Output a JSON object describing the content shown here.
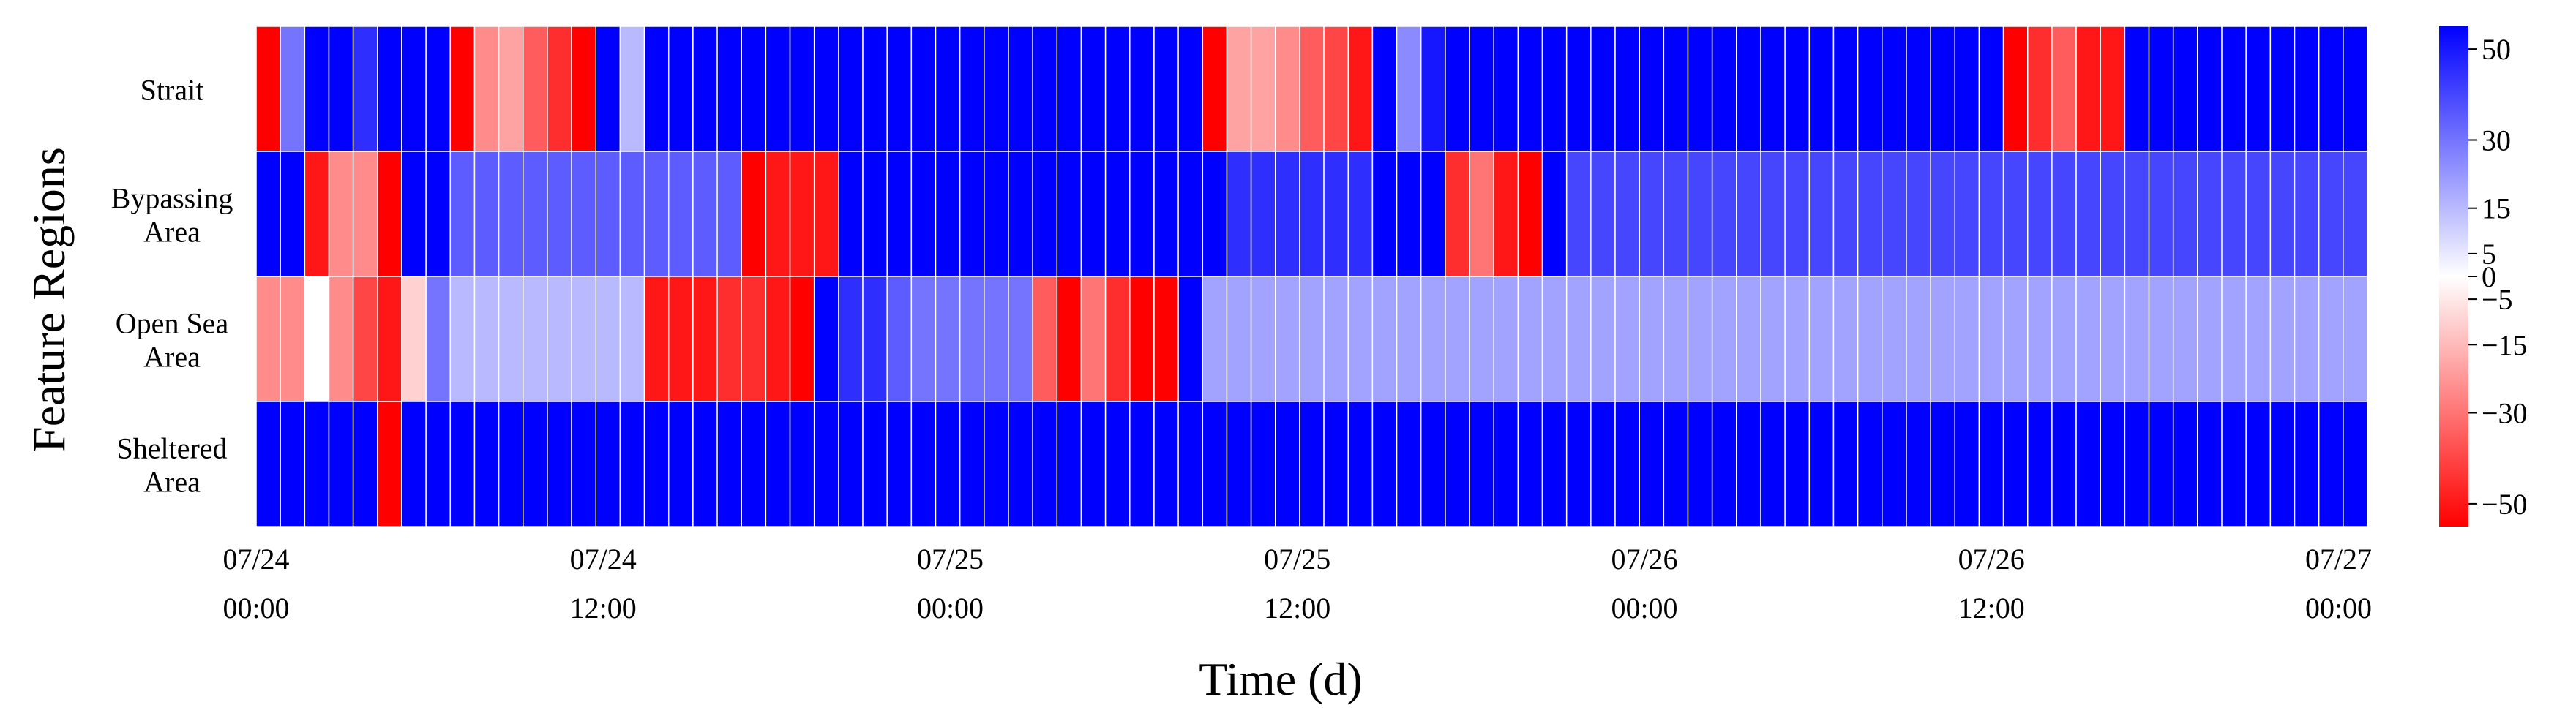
{
  "chart_data": {
    "type": "heatmap",
    "title": "",
    "xlabel": "Time (d)",
    "ylabel": "Feature Regions",
    "rows": [
      "Strait",
      "Bypassing Area",
      "Open Sea Area",
      "Sheltered Area"
    ],
    "row_label_lines": [
      [
        "Strait"
      ],
      [
        "Bypassing",
        "Area"
      ],
      [
        "Open Sea",
        "Area"
      ],
      [
        "Sheltered",
        "Area"
      ]
    ],
    "x_ticks": [
      {
        "hour": 0,
        "date": "07/24",
        "time": "00:00"
      },
      {
        "hour": 12,
        "date": "07/24",
        "time": "12:00"
      },
      {
        "hour": 24,
        "date": "07/25",
        "time": "00:00"
      },
      {
        "hour": 36,
        "date": "07/25",
        "time": "12:00"
      },
      {
        "hour": 48,
        "date": "07/26",
        "time": "00:00"
      },
      {
        "hour": 60,
        "date": "07/26",
        "time": "12:00"
      },
      {
        "hour": 72,
        "date": "07/27",
        "time": "00:00"
      }
    ],
    "time_range_hours": [
      0,
      73
    ],
    "color_scale": {
      "min": -55,
      "max": 55,
      "low_color": "#ff0000",
      "mid_color": "#ffffff",
      "high_color": "#0000ff"
    },
    "colorbar_ticks": [
      50,
      30,
      15,
      5,
      0,
      -5,
      -15,
      -30,
      -50
    ],
    "colorbar_tick_labels": [
      "50",
      "30",
      "15",
      "5",
      "0",
      "−5",
      "−15",
      "−30",
      "−50"
    ],
    "values": [
      [
        -55,
        30,
        55,
        55,
        45,
        55,
        55,
        55,
        -55,
        -25,
        -20,
        -35,
        -45,
        -55,
        55,
        15,
        55,
        55,
        55,
        55,
        55,
        55,
        55,
        55,
        55,
        55,
        55,
        55,
        55,
        55,
        55,
        55,
        55,
        55,
        55,
        55,
        55,
        55,
        55,
        -55,
        -20,
        -20,
        -25,
        -35,
        -40,
        -50,
        55,
        25,
        50,
        55,
        55,
        55,
        55,
        55,
        55,
        55,
        55,
        55,
        55,
        55,
        55,
        55,
        55,
        55,
        55,
        55,
        55,
        55,
        55,
        55,
        55,
        55,
        -55,
        -45,
        -35,
        -50,
        -50,
        55,
        55,
        55,
        55,
        55,
        55,
        55,
        55,
        55,
        55
      ],
      [
        55,
        55,
        -50,
        -25,
        -25,
        -55,
        55,
        55,
        35,
        35,
        35,
        35,
        35,
        35,
        35,
        35,
        35,
        35,
        35,
        35,
        -55,
        -50,
        -50,
        -50,
        55,
        55,
        55,
        55,
        55,
        55,
        55,
        55,
        55,
        55,
        55,
        55,
        55,
        55,
        55,
        55,
        45,
        45,
        45,
        45,
        45,
        45,
        55,
        55,
        55,
        -45,
        -30,
        -50,
        -55,
        55,
        40,
        40,
        40,
        40,
        40,
        40,
        40,
        40,
        40,
        40,
        40,
        40,
        40,
        40,
        40,
        40,
        40,
        40,
        40,
        40,
        40,
        40,
        40,
        40,
        40,
        40,
        40,
        40,
        40,
        40,
        40,
        40,
        40
      ],
      [
        -25,
        -25,
        0,
        -25,
        -40,
        -50,
        -10,
        30,
        15,
        15,
        15,
        15,
        15,
        15,
        15,
        15,
        -50,
        -50,
        -50,
        -45,
        -45,
        -50,
        -55,
        55,
        45,
        45,
        35,
        30,
        30,
        30,
        30,
        30,
        -35,
        -55,
        -30,
        -45,
        -55,
        -55,
        55,
        20,
        20,
        20,
        20,
        20,
        20,
        20,
        20,
        20,
        20,
        20,
        20,
        20,
        20,
        20,
        20,
        20,
        20,
        20,
        20,
        20,
        20,
        20,
        20,
        20,
        20,
        20,
        20,
        20,
        20,
        20,
        20,
        20,
        20,
        20,
        20,
        20,
        20,
        20,
        20,
        20,
        20,
        20,
        20,
        20,
        20,
        20,
        20
      ],
      [
        55,
        55,
        55,
        55,
        55,
        -55,
        55,
        55,
        55,
        55,
        55,
        55,
        55,
        55,
        55,
        55,
        55,
        55,
        55,
        55,
        55,
        55,
        55,
        55,
        55,
        55,
        55,
        55,
        55,
        55,
        55,
        55,
        55,
        55,
        55,
        55,
        55,
        55,
        55,
        55,
        55,
        55,
        55,
        55,
        55,
        55,
        55,
        55,
        55,
        55,
        55,
        55,
        55,
        55,
        55,
        55,
        55,
        55,
        55,
        55,
        55,
        55,
        55,
        55,
        55,
        55,
        55,
        55,
        55,
        55,
        55,
        55,
        55,
        55,
        55,
        55,
        55,
        55,
        55,
        55,
        55,
        55,
        55,
        55,
        55,
        55,
        55
      ]
    ]
  }
}
